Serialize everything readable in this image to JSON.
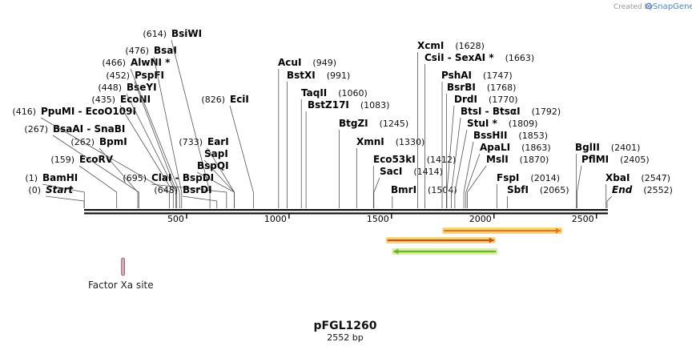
{
  "header": {
    "credit": "Created by",
    "brand": "SnapGene",
    "brand_color": "#4f86c6"
  },
  "plasmid": {
    "name": "pFGL1260",
    "length_label": "2552 bp",
    "length": 2552
  },
  "axis": {
    "ticks": [
      500,
      1000,
      1500,
      2000,
      2500
    ]
  },
  "sites": [
    {
      "id": "bamhi",
      "pos": 1,
      "name": "BamHI",
      "pos_label": "(1)",
      "row": "lb",
      "italic": false
    },
    {
      "id": "start",
      "pos": 0,
      "name": "Start",
      "pos_label": "(0)",
      "row": "lt",
      "italic": true
    },
    {
      "id": "ecorv",
      "pos": 159,
      "name": "EcoRV",
      "pos_label": "(159)",
      "row": "l1",
      "italic": false
    },
    {
      "id": "bpmi",
      "pos": 262,
      "name": "BpmI",
      "pos_label": "(262)",
      "row": "l2",
      "italic": false
    },
    {
      "id": "bsaai",
      "pos": 267,
      "name": "BsaAI  -  SnaBI",
      "pos_label": "(267)",
      "row": "l3",
      "italic": false
    },
    {
      "id": "ppumi",
      "pos": 416,
      "name": "PpuMI  -  EcoO109I",
      "pos_label": "(416)",
      "row": "l4",
      "italic": false
    },
    {
      "id": "econi",
      "pos": 435,
      "name": "EcoNI",
      "pos_label": "(435)",
      "row": "l5",
      "italic": false
    },
    {
      "id": "bseyi",
      "pos": 448,
      "name": "BseYI",
      "pos_label": "(448)",
      "row": "l6",
      "italic": false
    },
    {
      "id": "pspfi",
      "pos": 452,
      "name": "PspFI",
      "pos_label": "(452)",
      "row": "l7",
      "italic": false
    },
    {
      "id": "alwni",
      "pos": 466,
      "name": "AlwNI *",
      "pos_label": "(466)",
      "row": "l8",
      "italic": false
    },
    {
      "id": "bsai",
      "pos": 476,
      "name": "BsaI",
      "pos_label": "(476)",
      "row": "l9",
      "italic": false
    },
    {
      "id": "bsiwi",
      "pos": 614,
      "name": "BsiWI",
      "pos_label": "(614)",
      "row": "l10",
      "italic": false
    },
    {
      "id": "clai",
      "pos": 695,
      "name": "ClaI  -  BspDI",
      "pos_label": "(695)",
      "row": "cla",
      "italic": false
    },
    {
      "id": "bsrdi",
      "pos": 648,
      "name": "BsrDI",
      "pos_label": "(648)",
      "row": "bsr",
      "italic": false
    },
    {
      "id": "eari",
      "pos": 733,
      "name": "EarI",
      "pos_label": "(733)",
      "row": "ear",
      "italic": false
    },
    {
      "id": "sapi",
      "pos": 733,
      "name": "SapI",
      "pos_label": "",
      "row": "sap",
      "italic": false
    },
    {
      "id": "bspqi",
      "pos": 733,
      "name": "BspQI",
      "pos_label": "",
      "row": "bspq",
      "italic": false
    },
    {
      "id": "ecii",
      "pos": 826,
      "name": "EciI",
      "pos_label": "(826)",
      "row": "eci",
      "italic": false
    },
    {
      "id": "acui",
      "pos": 949,
      "name": "AcuI",
      "pos_label": "(949)",
      "row": "acu",
      "italic": false
    },
    {
      "id": "bstxi",
      "pos": 991,
      "name": "BstXI",
      "pos_label": "(991)",
      "row": "bstx",
      "italic": false
    },
    {
      "id": "taqii",
      "pos": 1060,
      "name": "TaqII",
      "pos_label": "(1060)",
      "row": "taq",
      "italic": false
    },
    {
      "id": "bstz17i",
      "pos": 1083,
      "name": "BstZ17I",
      "pos_label": "(1083)",
      "row": "bstz",
      "italic": false
    },
    {
      "id": "btgzi",
      "pos": 1245,
      "name": "BtgZI",
      "pos_label": "(1245)",
      "row": "btg",
      "italic": false
    },
    {
      "id": "xmni",
      "pos": 1330,
      "name": "XmnI",
      "pos_label": "(1330)",
      "row": "xmn",
      "italic": false
    },
    {
      "id": "eco53ki",
      "pos": 1412,
      "name": "Eco53kI",
      "pos_label": "(1412)",
      "row": "eco53",
      "italic": false
    },
    {
      "id": "saci",
      "pos": 1414,
      "name": "SacI",
      "pos_label": "(1414)",
      "row": "sac",
      "italic": false
    },
    {
      "id": "bmri",
      "pos": 1504,
      "name": "BmrI",
      "pos_label": "(1504)",
      "row": "bmr",
      "italic": false
    },
    {
      "id": "xcmi",
      "pos": 1628,
      "name": "XcmI",
      "pos_label": "(1628)",
      "row": "xcm",
      "italic": false
    },
    {
      "id": "csii",
      "pos": 1663,
      "name": "CsiI  -  SexAI *",
      "pos_label": "(1663)",
      "row": "csi",
      "italic": false
    },
    {
      "id": "pshai",
      "pos": 1747,
      "name": "PshAI",
      "pos_label": "(1747)",
      "row": "psh",
      "italic": false
    },
    {
      "id": "bsrbi",
      "pos": 1768,
      "name": "BsrBI",
      "pos_label": "(1768)",
      "row": "bsrb",
      "italic": false
    },
    {
      "id": "drdi",
      "pos": 1770,
      "name": "DrdI",
      "pos_label": "(1770)",
      "row": "drd",
      "italic": false
    },
    {
      "id": "btsi",
      "pos": 1792,
      "name": "BtsI  -  BtsαI",
      "pos_label": "(1792)",
      "row": "bts",
      "italic": false
    },
    {
      "id": "stui",
      "pos": 1809,
      "name": "StuI *",
      "pos_label": "(1809)",
      "row": "stu",
      "italic": false
    },
    {
      "id": "bsshii",
      "pos": 1853,
      "name": "BssHII",
      "pos_label": "(1853)",
      "row": "bssh",
      "italic": false
    },
    {
      "id": "apali",
      "pos": 1863,
      "name": "ApaLI",
      "pos_label": "(1863)",
      "row": "apa",
      "italic": false
    },
    {
      "id": "msli",
      "pos": 1870,
      "name": "MslI",
      "pos_label": "(1870)",
      "row": "msl",
      "italic": false
    },
    {
      "id": "fspi",
      "pos": 2014,
      "name": "FspI",
      "pos_label": "(2014)",
      "row": "fsp",
      "italic": false
    },
    {
      "id": "sbfi",
      "pos": 2065,
      "name": "SbfI",
      "pos_label": "(2065)",
      "row": "sbf",
      "italic": false
    },
    {
      "id": "bglii",
      "pos": 2401,
      "name": "BglII",
      "pos_label": "(2401)",
      "row": "bgl",
      "italic": false
    },
    {
      "id": "pflmi",
      "pos": 2405,
      "name": "PflMI",
      "pos_label": "(2405)",
      "row": "pfl",
      "italic": false
    },
    {
      "id": "xbai",
      "pos": 2547,
      "name": "XbaI",
      "pos_label": "(2547)",
      "row": "xba",
      "italic": false
    },
    {
      "id": "end",
      "pos": 2552,
      "name": "End",
      "pos_label": "(2552)",
      "row": "endr",
      "italic": true
    }
  ],
  "features": [
    {
      "id": "orange-top",
      "start": 1755,
      "end": 2325,
      "direction": "forward",
      "color": "#e87722",
      "halo": "#f7d77a"
    },
    {
      "id": "orange-mid",
      "start": 1480,
      "end": 2000,
      "direction": "forward",
      "color": "#c8501c",
      "halo": "#f7d77a"
    },
    {
      "id": "green",
      "start": 1510,
      "end": 2010,
      "direction": "reverse",
      "color": "#6bb52e",
      "halo": "#d9f0a3"
    }
  ],
  "factor_xa": {
    "label": "Factor Xa site",
    "pos": 190,
    "color": "#d9a8b8"
  }
}
